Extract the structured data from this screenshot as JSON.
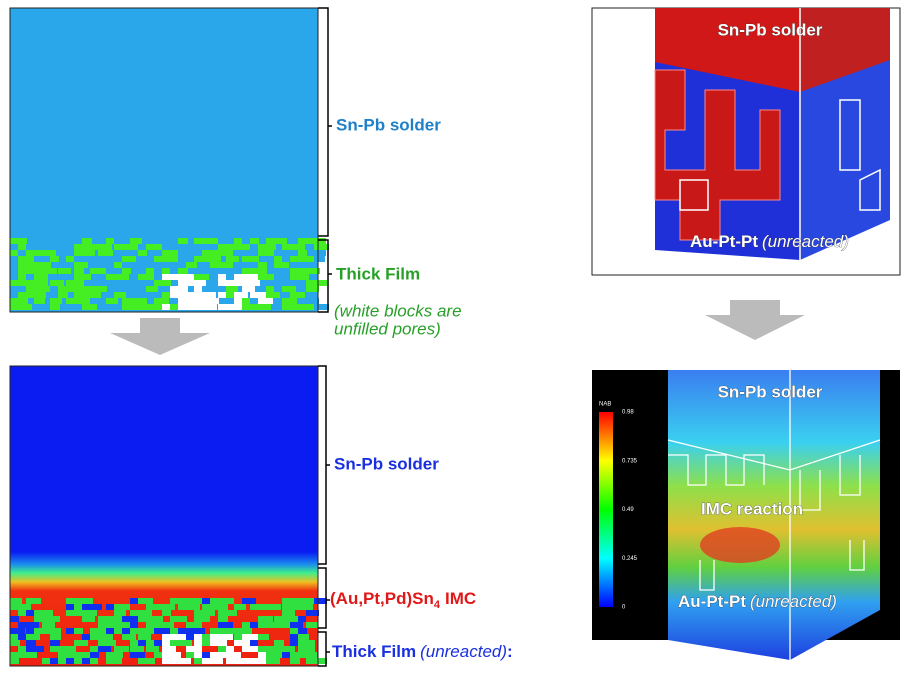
{
  "left_top": {
    "solder_label": "Sn-Pb solder",
    "film_label": "Thick Film",
    "note_line1": "(white blocks are",
    "note_line2": "unfilled pores)"
  },
  "left_bottom": {
    "solder_label": "Sn-Pb solder",
    "imc_label": "(Au,Pt,Pd)Sn",
    "imc_subscript": "4",
    "imc_suffix": "IMC",
    "film_label": "Thick Film",
    "film_note": "(unreacted)",
    "film_suffix": ":"
  },
  "right_top": {
    "solder_label": "Sn-Pb solder",
    "base_label": "Au-Pt-Pt",
    "base_note": "(unreacted)"
  },
  "right_bottom": {
    "colorbar_title": "NAB",
    "colorbar_ticks": [
      "0.98",
      "0.735",
      "0.49",
      "0.245",
      "0"
    ],
    "solder_label": "Sn-Pb solder",
    "reaction_label": "IMC reaction",
    "base_label": "Au-Pt-Pt",
    "base_note": "(unreacted)"
  }
}
